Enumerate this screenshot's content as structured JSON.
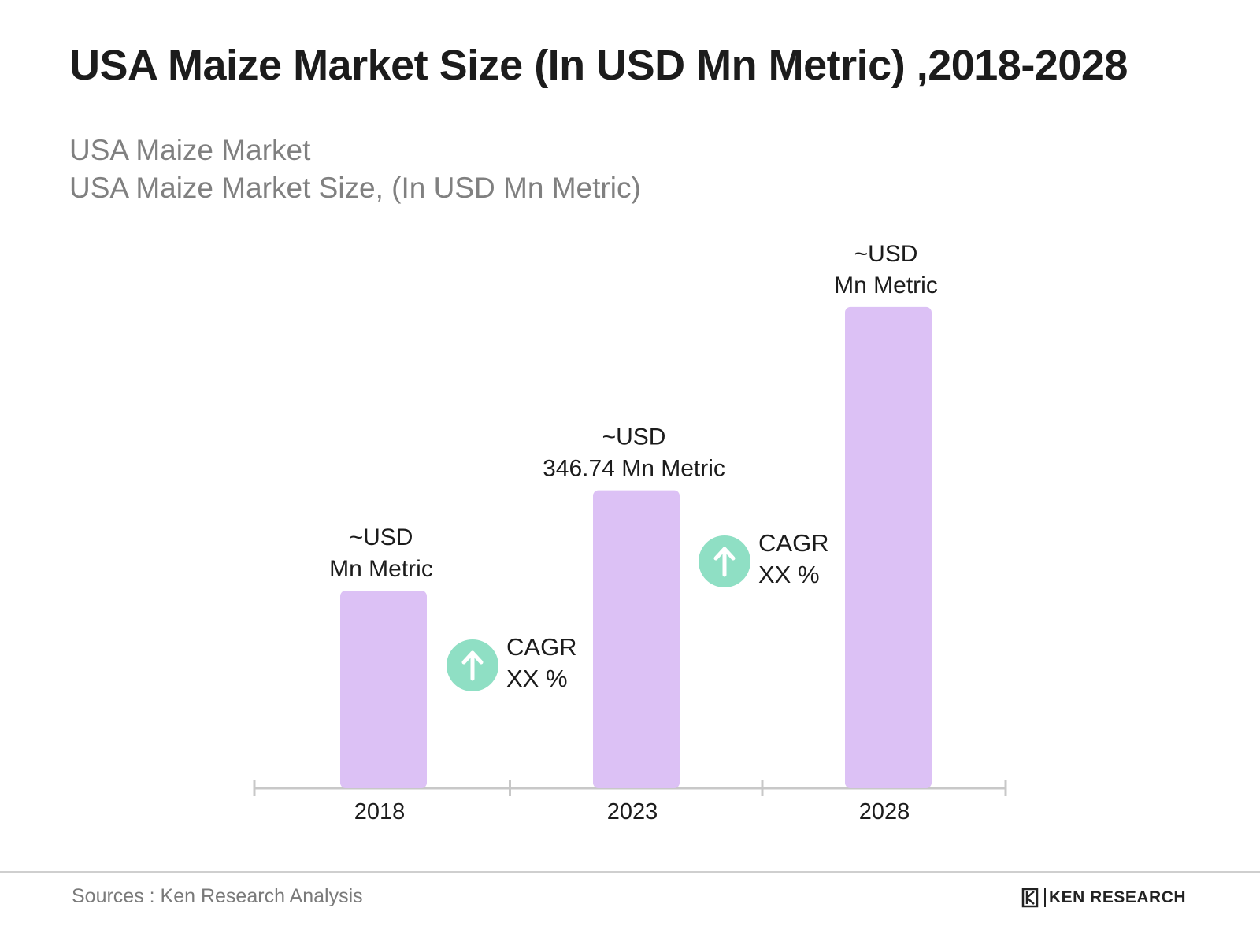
{
  "title": "USA Maize Market Size (In USD Mn Metric) ,2018-2028",
  "subtitle_line1": "USA Maize Market",
  "subtitle_line2": "USA Maize Market Size, (In USD Mn Metric)",
  "chart_data": {
    "type": "bar",
    "categories": [
      "2018",
      "2023",
      "2028"
    ],
    "values": [
      230,
      346.74,
      560
    ],
    "ylim": [
      0,
      570
    ],
    "grid": false,
    "bar_color": "#dcc1f5",
    "axis_color": "#c8c8c8",
    "data_labels": [
      {
        "line1": "~USD",
        "line2": "Mn Metric"
      },
      {
        "line1": "~USD",
        "line2": "346.74 Mn Metric"
      },
      {
        "line1": "~USD",
        "line2": "Mn Metric"
      }
    ],
    "annotations": [
      {
        "line1": "CAGR",
        "line2": "XX %",
        "icon": "arrow-up-icon",
        "color": "#8fdfc4",
        "between": [
          0,
          1
        ]
      },
      {
        "line1": "CAGR",
        "line2": "XX %",
        "icon": "arrow-up-icon",
        "color": "#8fdfc4",
        "between": [
          1,
          2
        ]
      }
    ]
  },
  "footer": {
    "sources": "Sources : Ken Research Analysis",
    "logo_text": "KEN RESEARCH"
  }
}
